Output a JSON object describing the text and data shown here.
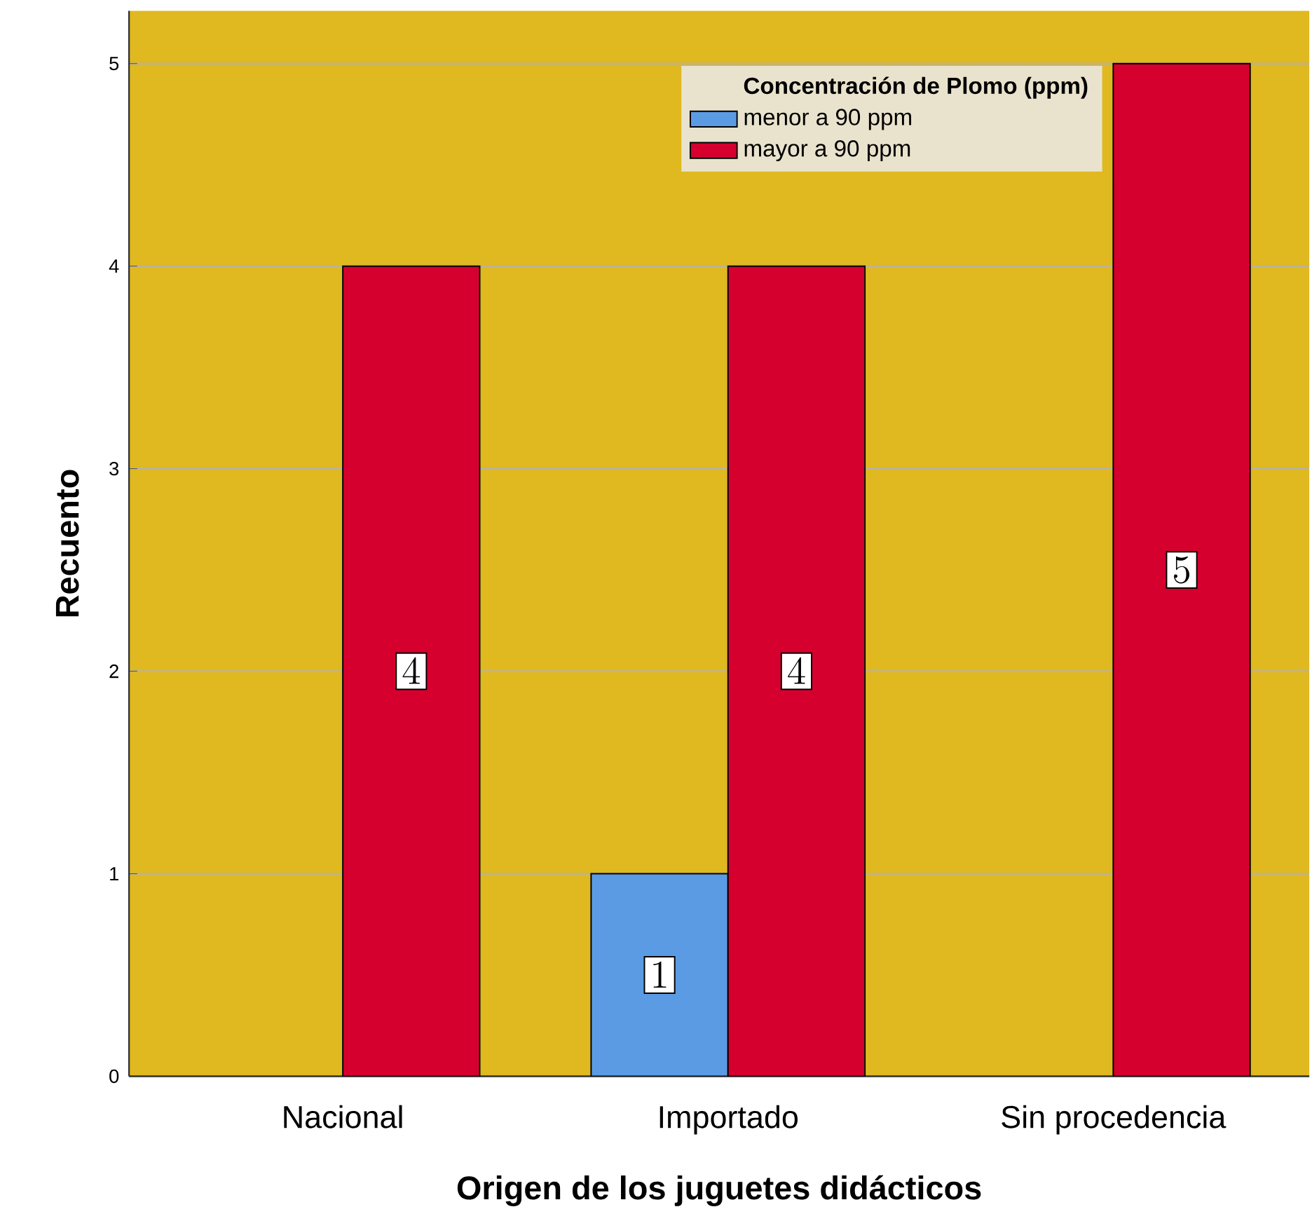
{
  "chart_data": {
    "type": "bar",
    "xlabel": "Origen de los  juguetes didácticos",
    "ylabel": "Recuento",
    "categories": [
      "Nacional",
      "Importado",
      "Sin procedencia"
    ],
    "series": [
      {
        "name": "menor a 90 ppm",
        "color": "#5b9be3",
        "values": [
          null,
          1,
          null
        ]
      },
      {
        "name": "mayor a 90 ppm",
        "color": "#d6002f",
        "values": [
          4,
          4,
          5
        ]
      }
    ],
    "legend_title": "Concentración de Plomo (ppm)",
    "ylim": [
      0,
      5.26
    ],
    "yticks": [
      0,
      1,
      2,
      3,
      4,
      5
    ],
    "grid": "y",
    "legend": "top right",
    "data_labels": true
  }
}
